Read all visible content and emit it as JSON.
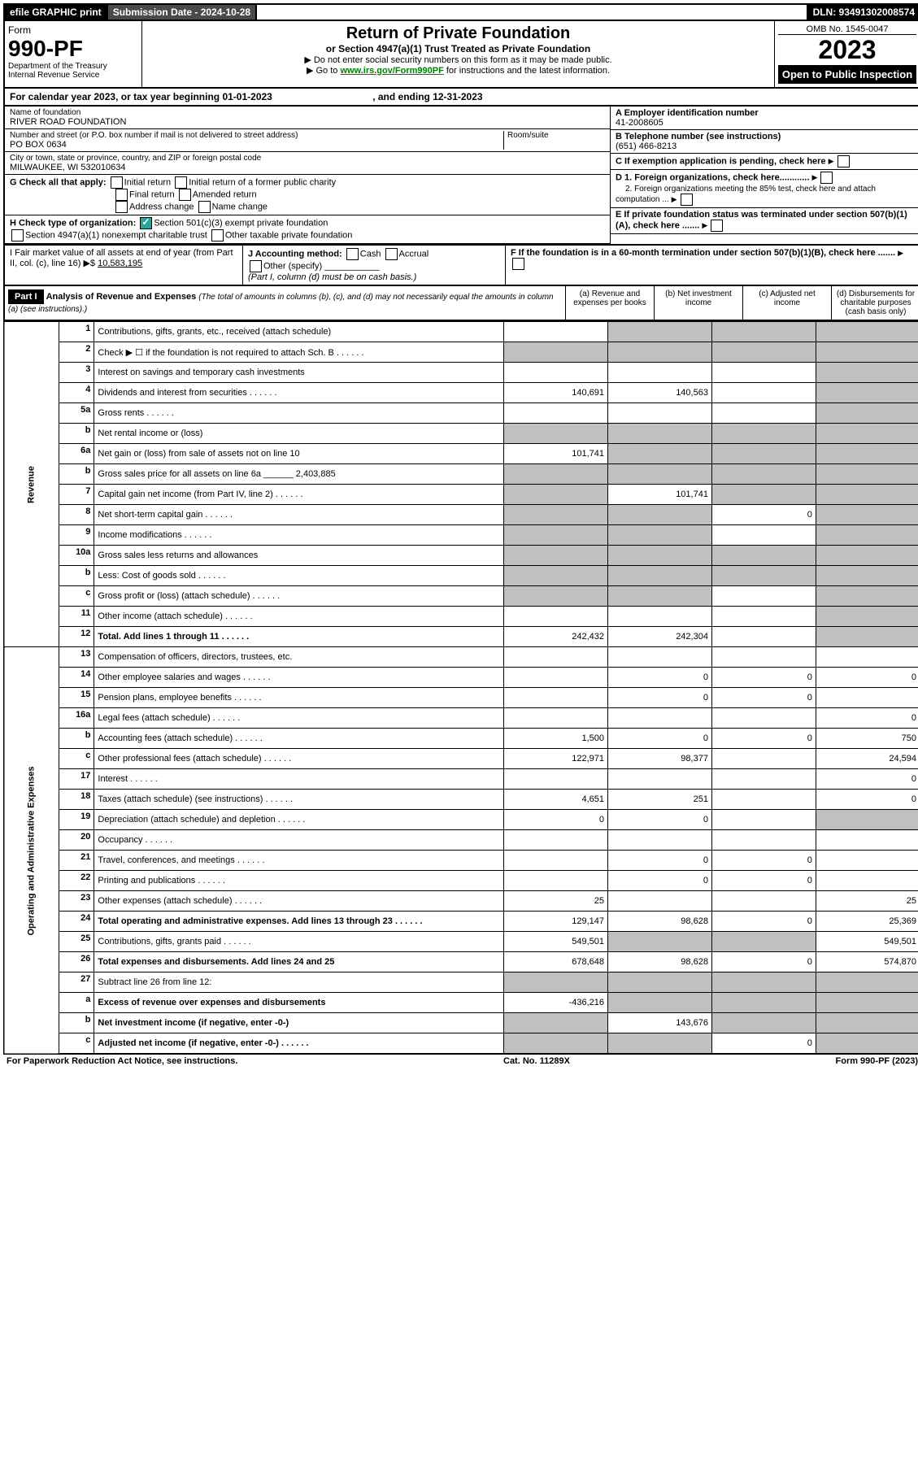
{
  "top_bar": {
    "efile": "efile GRAPHIC print",
    "sub_label": "Submission Date - 2024-10-28",
    "dln": "DLN: 93491302008574"
  },
  "header": {
    "form_word": "Form",
    "form_number": "990-PF",
    "dept": "Department of the Treasury",
    "irs": "Internal Revenue Service",
    "title": "Return of Private Foundation",
    "subtitle": "or Section 4947(a)(1) Trust Treated as Private Foundation",
    "instr1": "▶ Do not enter social security numbers on this form as it may be made public.",
    "instr2_pre": "▶ Go to ",
    "instr2_link": "www.irs.gov/Form990PF",
    "instr2_post": " for instructions and the latest information.",
    "omb": "OMB No. 1545-0047",
    "year": "2023",
    "open": "Open to Public Inspection"
  },
  "tax_year": {
    "text_pre": "For calendar year 2023, or tax year beginning ",
    "begin": "01-01-2023",
    "text_mid": ", and ending ",
    "end": "12-31-2023"
  },
  "foundation": {
    "name_label": "Name of foundation",
    "name": "RIVER ROAD FOUNDATION",
    "addr_label": "Number and street (or P.O. box number if mail is not delivered to street address)",
    "addr": "PO BOX 0634",
    "room_label": "Room/suite",
    "city_label": "City or town, state or province, country, and ZIP or foreign postal code",
    "city": "MILWAUKEE, WI  532010634",
    "ein_label": "A Employer identification number",
    "ein": "41-2008605",
    "phone_label": "B Telephone number (see instructions)",
    "phone": "(651) 466-8213",
    "c_label": "C If exemption application is pending, check here",
    "d1": "D 1. Foreign organizations, check here............",
    "d2": "2. Foreign organizations meeting the 85% test, check here and attach computation ...",
    "e_label": "E  If private foundation status was terminated under section 507(b)(1)(A), check here .......",
    "f_label": "F  If the foundation is in a 60-month termination under section 507(b)(1)(B), check here .......",
    "g_label": "G Check all that apply:",
    "g_opts": [
      "Initial return",
      "Initial return of a former public charity",
      "Final return",
      "Amended return",
      "Address change",
      "Name change"
    ],
    "h_label": "H Check type of organization:",
    "h_opts": [
      "Section 501(c)(3) exempt private foundation",
      "Section 4947(a)(1) nonexempt charitable trust",
      "Other taxable private foundation"
    ],
    "i_label": "I Fair market value of all assets at end of year (from Part II, col. (c), line 16) ▶$",
    "i_value": "10,583,195",
    "j_label": "J Accounting method:",
    "j_opts": [
      "Cash",
      "Accrual"
    ],
    "j_other": "Other (specify)",
    "j_note": "(Part I, column (d) must be on cash basis.)"
  },
  "part1": {
    "label": "Part I",
    "title": "Analysis of Revenue and Expenses",
    "title_note": "(The total of amounts in columns (b), (c), and (d) may not necessarily equal the amounts in column (a) (see instructions).)",
    "col_a": "(a)   Revenue and expenses per books",
    "col_b": "(b)   Net investment income",
    "col_c": "(c)   Adjusted net income",
    "col_d": "(d)   Disbursements for charitable purposes (cash basis only)"
  },
  "side_labels": {
    "revenue": "Revenue",
    "expenses": "Operating and Administrative Expenses"
  },
  "rows": [
    {
      "n": "1",
      "desc": "Contributions, gifts, grants, etc., received (attach schedule)",
      "a": "",
      "b_grey": true,
      "c_grey": true,
      "d_grey": true
    },
    {
      "n": "2",
      "desc": "Check ▶ ☐ if the foundation is not required to attach Sch. B",
      "dots": true,
      "a_grey": true,
      "b_grey": true,
      "c_grey": true,
      "d_grey": true
    },
    {
      "n": "3",
      "desc": "Interest on savings and temporary cash investments",
      "a": "",
      "b": "",
      "c": "",
      "d_grey": true
    },
    {
      "n": "4",
      "desc": "Dividends and interest from securities",
      "dots": true,
      "a": "140,691",
      "b": "140,563",
      "c": "",
      "d_grey": true
    },
    {
      "n": "5a",
      "desc": "Gross rents",
      "dots": true,
      "a": "",
      "b": "",
      "c": "",
      "d_grey": true
    },
    {
      "n": "b",
      "desc": "Net rental income or (loss)",
      "a_grey": true,
      "b_grey": true,
      "c_grey": true,
      "d_grey": true
    },
    {
      "n": "6a",
      "desc": "Net gain or (loss) from sale of assets not on line 10",
      "a": "101,741",
      "b_grey": true,
      "c_grey": true,
      "d_grey": true
    },
    {
      "n": "b",
      "desc": "Gross sales price for all assets on line 6a ______ 2,403,885",
      "a_grey": true,
      "b_grey": true,
      "c_grey": true,
      "d_grey": true
    },
    {
      "n": "7",
      "desc": "Capital gain net income (from Part IV, line 2)",
      "dots": true,
      "a_grey": true,
      "b": "101,741",
      "c_grey": true,
      "d_grey": true
    },
    {
      "n": "8",
      "desc": "Net short-term capital gain",
      "dots": true,
      "a_grey": true,
      "b_grey": true,
      "c": "0",
      "d_grey": true
    },
    {
      "n": "9",
      "desc": "Income modifications",
      "dots": true,
      "a_grey": true,
      "b_grey": true,
      "c": "",
      "d_grey": true
    },
    {
      "n": "10a",
      "desc": "Gross sales less returns and allowances",
      "a_grey": true,
      "b_grey": true,
      "c_grey": true,
      "d_grey": true
    },
    {
      "n": "b",
      "desc": "Less: Cost of goods sold",
      "dots": true,
      "a_grey": true,
      "b_grey": true,
      "c_grey": true,
      "d_grey": true
    },
    {
      "n": "c",
      "desc": "Gross profit or (loss) (attach schedule)",
      "dots": true,
      "a_grey": true,
      "b_grey": true,
      "c": "",
      "d_grey": true
    },
    {
      "n": "11",
      "desc": "Other income (attach schedule)",
      "dots": true,
      "a": "",
      "b": "",
      "c": "",
      "d_grey": true
    },
    {
      "n": "12",
      "desc": "Total. Add lines 1 through 11",
      "dots": true,
      "bold": true,
      "a": "242,432",
      "b": "242,304",
      "c": "",
      "d_grey": true
    },
    {
      "n": "13",
      "desc": "Compensation of officers, directors, trustees, etc.",
      "a": "",
      "b": "",
      "c": "",
      "d": ""
    },
    {
      "n": "14",
      "desc": "Other employee salaries and wages",
      "dots": true,
      "a": "",
      "b": "0",
      "c": "0",
      "d": "0"
    },
    {
      "n": "15",
      "desc": "Pension plans, employee benefits",
      "dots": true,
      "a": "",
      "b": "0",
      "c": "0",
      "d": ""
    },
    {
      "n": "16a",
      "desc": "Legal fees (attach schedule)",
      "dots": true,
      "a": "",
      "b": "",
      "c": "",
      "d": "0"
    },
    {
      "n": "b",
      "desc": "Accounting fees (attach schedule)",
      "dots": true,
      "a": "1,500",
      "b": "0",
      "c": "0",
      "d": "750"
    },
    {
      "n": "c",
      "desc": "Other professional fees (attach schedule)",
      "dots": true,
      "a": "122,971",
      "b": "98,377",
      "c": "",
      "d": "24,594"
    },
    {
      "n": "17",
      "desc": "Interest",
      "dots": true,
      "a": "",
      "b": "",
      "c": "",
      "d": "0"
    },
    {
      "n": "18",
      "desc": "Taxes (attach schedule) (see instructions)",
      "dots": true,
      "a": "4,651",
      "b": "251",
      "c": "",
      "d": "0"
    },
    {
      "n": "19",
      "desc": "Depreciation (attach schedule) and depletion",
      "dots": true,
      "a": "0",
      "b": "0",
      "c": "",
      "d_grey": true
    },
    {
      "n": "20",
      "desc": "Occupancy",
      "dots": true,
      "a": "",
      "b": "",
      "c": "",
      "d": ""
    },
    {
      "n": "21",
      "desc": "Travel, conferences, and meetings",
      "dots": true,
      "a": "",
      "b": "0",
      "c": "0",
      "d": ""
    },
    {
      "n": "22",
      "desc": "Printing and publications",
      "dots": true,
      "a": "",
      "b": "0",
      "c": "0",
      "d": ""
    },
    {
      "n": "23",
      "desc": "Other expenses (attach schedule)",
      "dots": true,
      "a": "25",
      "b": "",
      "c": "",
      "d": "25"
    },
    {
      "n": "24",
      "desc": "Total operating and administrative expenses. Add lines 13 through 23",
      "dots": true,
      "bold": true,
      "a": "129,147",
      "b": "98,628",
      "c": "0",
      "d": "25,369"
    },
    {
      "n": "25",
      "desc": "Contributions, gifts, grants paid",
      "dots": true,
      "a": "549,501",
      "b_grey": true,
      "c_grey": true,
      "d": "549,501"
    },
    {
      "n": "26",
      "desc": "Total expenses and disbursements. Add lines 24 and 25",
      "bold": true,
      "a": "678,648",
      "b": "98,628",
      "c": "0",
      "d": "574,870"
    },
    {
      "n": "27",
      "desc": "Subtract line 26 from line 12:",
      "a_grey": true,
      "b_grey": true,
      "c_grey": true,
      "d_grey": true
    },
    {
      "n": "a",
      "desc": "Excess of revenue over expenses and disbursements",
      "bold": true,
      "a": "-436,216",
      "b_grey": true,
      "c_grey": true,
      "d_grey": true
    },
    {
      "n": "b",
      "desc": "Net investment income (if negative, enter -0-)",
      "bold": true,
      "a_grey": true,
      "b": "143,676",
      "c_grey": true,
      "d_grey": true
    },
    {
      "n": "c",
      "desc": "Adjusted net income (if negative, enter -0-)",
      "dots": true,
      "bold": true,
      "a_grey": true,
      "b_grey": true,
      "c": "0",
      "d_grey": true
    }
  ],
  "footer": {
    "left": "For Paperwork Reduction Act Notice, see instructions.",
    "mid": "Cat. No. 11289X",
    "right": "Form 990-PF (2023)"
  }
}
